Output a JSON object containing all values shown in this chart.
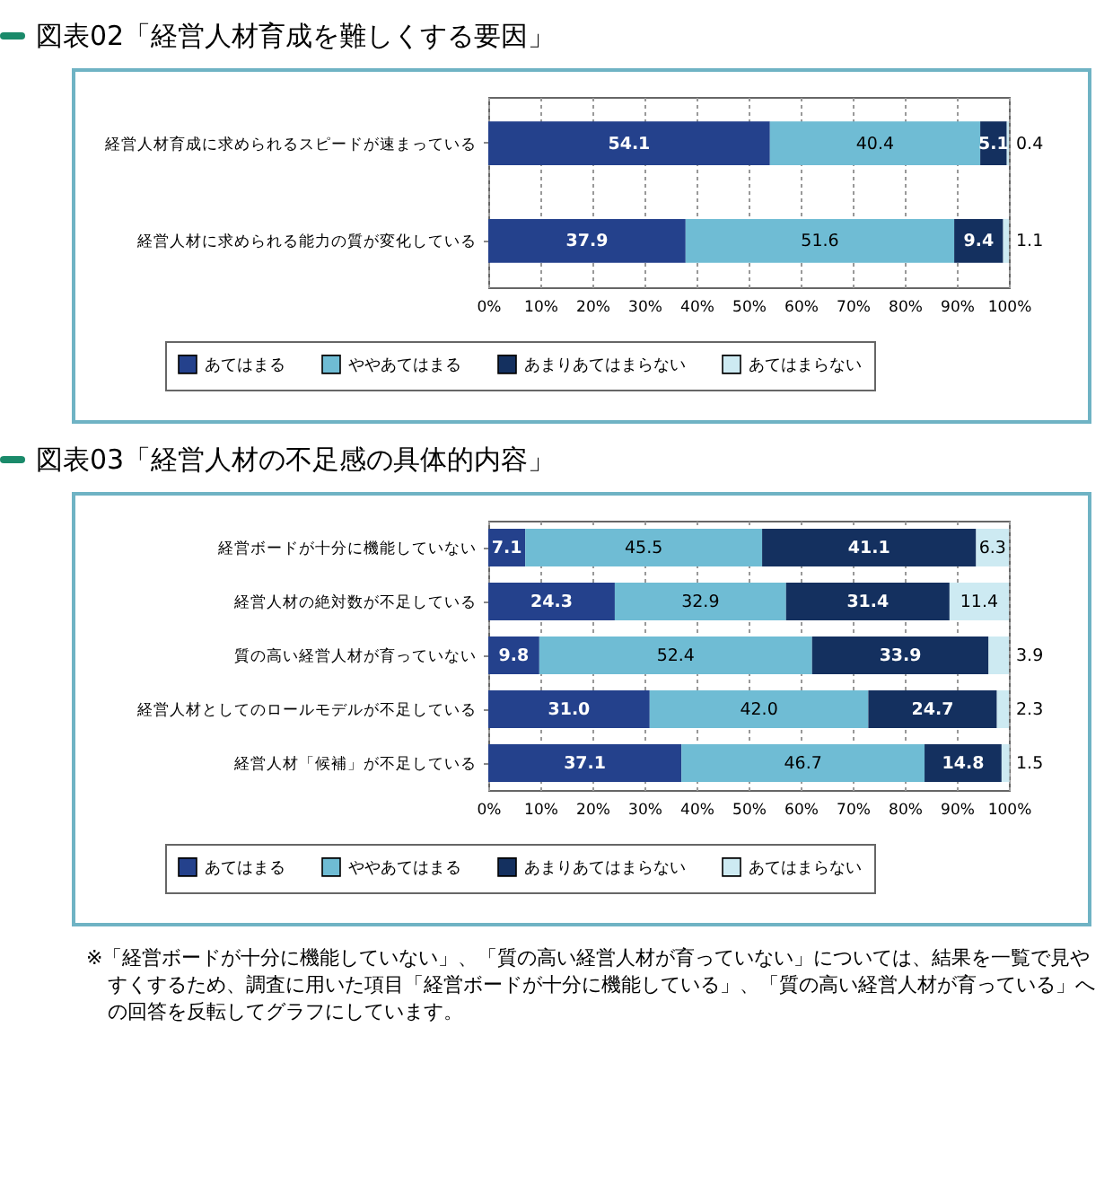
{
  "chart_data": [
    {
      "type": "bar",
      "title": "図表02「経営人材育成を難しくする要因」",
      "orientation": "horizontal",
      "stacked": true,
      "categories": [
        "経営人材育成に求められるスピードが速まっている",
        "経営人材に求められる能力の質が変化している"
      ],
      "series": [
        {
          "name": "あてはまる",
          "color": "#24418c",
          "values": [
            54.1,
            37.9
          ],
          "value_labels": [
            "54.1",
            "37.9"
          ]
        },
        {
          "name": "ややあてはまる",
          "color": "#6fbcd4",
          "values": [
            40.4,
            51.6
          ],
          "value_labels": [
            "40.4",
            "51.6"
          ]
        },
        {
          "name": "あまりあてはまらない",
          "color": "#14305f",
          "values": [
            5.1,
            9.4
          ],
          "value_labels": [
            "5.1",
            "9.4"
          ]
        },
        {
          "name": "あてはまらない",
          "color": "#cdeaf2",
          "values": [
            0.4,
            1.1
          ],
          "value_labels": [
            "0.4",
            "1.1"
          ]
        }
      ],
      "xlim": [
        0,
        100
      ],
      "xticks": [
        {
          "value": 0,
          "label": "0%"
        },
        {
          "value": 10,
          "label": "10%"
        },
        {
          "value": 20,
          "label": "20%"
        },
        {
          "value": 30,
          "label": "30%"
        },
        {
          "value": 40,
          "label": "40%"
        },
        {
          "value": 50,
          "label": "50%"
        },
        {
          "value": 60,
          "label": "60%"
        },
        {
          "value": 70,
          "label": "70%"
        },
        {
          "value": 80,
          "label": "80%"
        },
        {
          "value": 90,
          "label": "90%"
        },
        {
          "value": 100,
          "label": "100%"
        }
      ],
      "grid": "x",
      "legend": "bottom"
    },
    {
      "type": "bar",
      "title": "図表03「経営人材の不足感の具体的内容」",
      "orientation": "horizontal",
      "stacked": true,
      "categories": [
        "経営ボードが十分に機能していない",
        "経営人材の絶対数が不足している",
        "質の高い経営人材が育っていない",
        "経営人材としてのロールモデルが不足している",
        "経営人材「候補」が不足している"
      ],
      "series": [
        {
          "name": "あてはまる",
          "color": "#24418c",
          "values": [
            7.1,
            24.3,
            9.8,
            31.0,
            37.1
          ],
          "value_labels": [
            "7.1",
            "24.3",
            "9.8",
            "31.0",
            "37.1"
          ]
        },
        {
          "name": "ややあてはまる",
          "color": "#6fbcd4",
          "values": [
            45.5,
            32.9,
            52.4,
            42.0,
            46.7
          ],
          "value_labels": [
            "45.5",
            "32.9",
            "52.4",
            "42.0",
            "46.7"
          ]
        },
        {
          "name": "あまりあてはまらない",
          "color": "#14305f",
          "values": [
            41.1,
            31.4,
            33.9,
            24.7,
            14.8
          ],
          "value_labels": [
            "41.1",
            "31.4",
            "33.9",
            "24.7",
            "14.8"
          ]
        },
        {
          "name": "あてはまらない",
          "color": "#cdeaf2",
          "values": [
            6.3,
            11.4,
            3.9,
            2.3,
            1.5
          ],
          "value_labels": [
            "6.3",
            "11.4",
            "3.9",
            "2.3",
            "1.5"
          ]
        }
      ],
      "xlim": [
        0,
        100
      ],
      "xticks": [
        {
          "value": 0,
          "label": "0%"
        },
        {
          "value": 10,
          "label": "10%"
        },
        {
          "value": 20,
          "label": "20%"
        },
        {
          "value": 30,
          "label": "30%"
        },
        {
          "value": 40,
          "label": "40%"
        },
        {
          "value": 50,
          "label": "50%"
        },
        {
          "value": 60,
          "label": "60%"
        },
        {
          "value": 70,
          "label": "70%"
        },
        {
          "value": 80,
          "label": "80%"
        },
        {
          "value": 90,
          "label": "90%"
        },
        {
          "value": 100,
          "label": "100%"
        }
      ],
      "grid": "x",
      "legend": "bottom",
      "annotations": [
        "※「経営ボードが十分に機能していない」、「質の高い経営人材が育っていない」については、結果を一覧で見やすくするため、調査に用いた項目「経営ボードが十分に機能している」、「質の高い経営人材が育っている」への回答を反転してグラフにしています。"
      ]
    }
  ]
}
